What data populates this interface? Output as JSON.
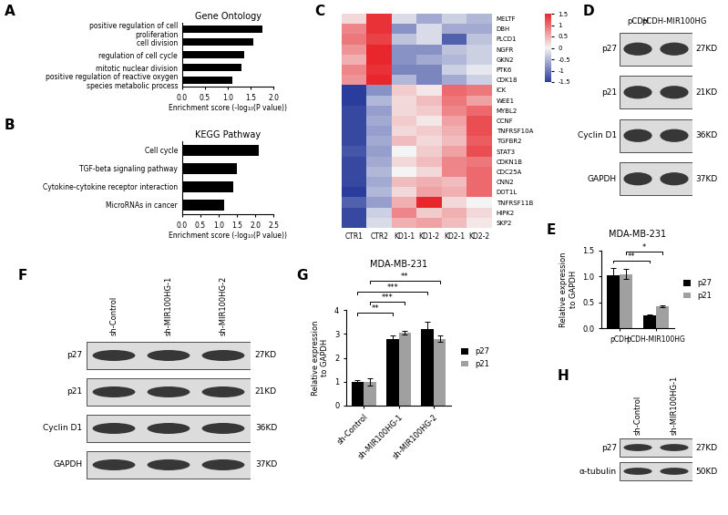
{
  "chart_data": [
    {
      "panel": "A",
      "type": "bar",
      "orientation": "horizontal",
      "title": "Gene Ontology",
      "categories": [
        "positive regulation of cell proliferation",
        "cell division",
        "regulation of cell cycle",
        "mitotic nuclear division",
        "positive regulation of reactive oxygen species metabolic process"
      ],
      "values": [
        1.75,
        1.55,
        1.35,
        1.3,
        1.1
      ],
      "color": "#000000",
      "xlabel": "Enrichment score (-log₁₀(P value))",
      "xlim": [
        0,
        2
      ],
      "xticks": [
        {
          "value": 0,
          "label": "0.0"
        },
        0.5,
        {
          "value": 1,
          "label": "1.0"
        },
        1.5,
        {
          "value": 2,
          "label": "2.0"
        }
      ]
    },
    {
      "panel": "B",
      "type": "bar",
      "orientation": "horizontal",
      "title": "KEGG Pathway",
      "categories": [
        "Cell cycle",
        "TGF-beta signaling pathway",
        "Cytokine-cytokine receptor interaction",
        "MicroRNAs in cancer"
      ],
      "values": [
        2.1,
        1.5,
        1.4,
        1.15
      ],
      "color": "#000000",
      "xlabel": "Enrichment score (-log₁₀(P value))",
      "xlim": [
        0,
        2.5
      ],
      "xticks": [
        {
          "value": 0,
          "label": "0.0"
        },
        0.5,
        {
          "value": 1,
          "label": "1.0"
        },
        1.5,
        {
          "value": 2,
          "label": "2.0"
        },
        2.5
      ]
    },
    {
      "panel": "C",
      "type": "heatmap",
      "columns": [
        "CTR1",
        "CTR2",
        "KD1-1",
        "KD1-2",
        "KD2-1",
        "KD2-2"
      ],
      "rows": [
        "MELTF",
        "DBH",
        "PLCD1",
        "NGFR",
        "GKN2",
        "PTK6",
        "CDK18",
        "ICK",
        "WEE1",
        "MYBL2",
        "CCNF",
        "TNFRSF10A",
        "TGFBR2",
        "STAT3",
        "CDKN1B",
        "CDC25A",
        "CNN2",
        "DOT1L",
        "TNFRSF11B",
        "HIPK2",
        "SKP2"
      ],
      "cells": [
        [
          0.2,
          1.4,
          -0.2,
          -0.6,
          -0.3,
          -0.5
        ],
        [
          0.8,
          1.4,
          -0.8,
          -0.2,
          -0.6,
          -0.6
        ],
        [
          0.9,
          1.3,
          -0.4,
          -0.2,
          -1.2,
          -0.4
        ],
        [
          0.7,
          1.5,
          -0.8,
          -0.8,
          -0.4,
          -0.3
        ],
        [
          0.5,
          1.5,
          -0.8,
          -0.6,
          -0.5,
          -0.3
        ],
        [
          0.8,
          1.4,
          -0.9,
          -0.9,
          -0.3,
          -0.1
        ],
        [
          0.7,
          1.5,
          -0.5,
          -0.9,
          -0.6,
          -0.3
        ],
        [
          -1.5,
          -0.8,
          0.3,
          0.1,
          1.0,
          0.9
        ],
        [
          -1.5,
          -0.5,
          0.2,
          0.4,
          0.9,
          0.6
        ],
        [
          -1.4,
          -0.7,
          0.2,
          0.3,
          0.8,
          1.0
        ],
        [
          -1.4,
          -0.6,
          0.3,
          0.1,
          0.6,
          1.2
        ],
        [
          -1.4,
          -0.7,
          0.2,
          0.3,
          0.5,
          1.2
        ],
        [
          -1.4,
          -0.6,
          0.4,
          0.2,
          0.4,
          1.1
        ],
        [
          -1.3,
          -0.7,
          0.0,
          0.3,
          0.6,
          1.2
        ],
        [
          -1.4,
          -0.6,
          0.2,
          0.4,
          0.8,
          0.9
        ],
        [
          -1.4,
          -0.5,
          0.0,
          0.2,
          0.8,
          1.0
        ],
        [
          -1.4,
          -0.6,
          0.4,
          0.5,
          0.4,
          1.0
        ],
        [
          -1.5,
          -0.5,
          0.2,
          0.6,
          0.5,
          1.0
        ],
        [
          -1.2,
          -0.7,
          0.5,
          1.5,
          0.2,
          0.0
        ],
        [
          -1.4,
          -0.3,
          0.8,
          0.3,
          0.5,
          0.2
        ],
        [
          -1.4,
          -0.2,
          0.5,
          0.6,
          0.4,
          0.1
        ]
      ],
      "colorbar_range": [
        -1.5,
        1.5
      ],
      "colorbar_ticks": [
        1.5,
        1,
        0.5,
        0,
        -0.5,
        -1,
        -1.5
      ]
    },
    {
      "panel": "E",
      "type": "bar",
      "title": "MDA-MB-231",
      "ylabel": "Relative expression\nto GAPDH",
      "categories": [
        "pCDH",
        "pCDH-MIR100HG"
      ],
      "series": [
        {
          "name": "p27",
          "color": "#000000",
          "values": [
            1.03,
            0.25
          ],
          "errors": [
            0.13,
            0.02
          ]
        },
        {
          "name": "p21",
          "color": "#a0a0a0",
          "values": [
            1.05,
            0.43
          ],
          "errors": [
            0.1,
            0.02
          ]
        }
      ],
      "ylim": [
        0,
        1.5
      ],
      "yticks": [
        {
          "value": 0,
          "label": "0.0"
        },
        0.5,
        {
          "value": 1,
          "label": "1.0"
        },
        1.5
      ],
      "legend": "right",
      "significance": [
        {
          "text": "**",
          "series": "p27",
          "between": [
            "pCDH",
            "pCDH-MIR100HG"
          ]
        },
        {
          "text": "*",
          "series": "p21",
          "between": [
            "pCDH",
            "pCDH-MIR100HG"
          ]
        }
      ]
    },
    {
      "panel": "G",
      "type": "bar",
      "title": "MDA-MB-231",
      "ylabel": "Relative expression\nto GAPDH",
      "categories": [
        "sh-Control",
        "sh-MIR100HG-1",
        "sh-MIR100HG-2"
      ],
      "series": [
        {
          "name": "p27",
          "color": "#000000",
          "values": [
            1.0,
            2.8,
            3.2
          ],
          "errors": [
            0.08,
            0.15,
            0.3
          ]
        },
        {
          "name": "p21",
          "color": "#a0a0a0",
          "values": [
            1.0,
            3.05,
            2.8
          ],
          "errors": [
            0.15,
            0.08,
            0.15
          ]
        }
      ],
      "ylim": [
        0,
        4
      ],
      "yticks": [
        0,
        1,
        2,
        3,
        4
      ],
      "legend": "right",
      "significance": [
        {
          "text": "**",
          "series": "p27",
          "between": [
            "sh-Control",
            "sh-MIR100HG-1"
          ]
        },
        {
          "text": "***",
          "series": "p21",
          "between": [
            "sh-Control",
            "sh-MIR100HG-1"
          ]
        },
        {
          "text": "***",
          "series": "p27",
          "between": [
            "sh-Control",
            "sh-MIR100HG-2"
          ]
        },
        {
          "text": "**",
          "series": "p21",
          "between": [
            "sh-Control",
            "sh-MIR100HG-2"
          ]
        }
      ]
    }
  ],
  "blots": [
    {
      "panel": "D",
      "lanes": [
        "pCDH",
        "pCDH-MIR100HG"
      ],
      "bands": [
        {
          "protein": "p27",
          "size": "27KD"
        },
        {
          "protein": "p21",
          "size": "21KD"
        },
        {
          "protein": "Cyclin D1",
          "size": "36KD"
        },
        {
          "protein": "GAPDH",
          "size": "37KD"
        }
      ]
    },
    {
      "panel": "F",
      "lanes": [
        "sh-Control",
        "sh-MIR100HG-1",
        "sh-MIR100HG-2"
      ],
      "bands": [
        {
          "protein": "p27",
          "size": "27KD"
        },
        {
          "protein": "p21",
          "size": "21KD"
        },
        {
          "protein": "Cyclin D1",
          "size": "36KD"
        },
        {
          "protein": "GAPDH",
          "size": "37KD"
        }
      ]
    },
    {
      "panel": "H",
      "lanes": [
        "sh-Control",
        "sh-MIR100HG-1"
      ],
      "bands": [
        {
          "protein": "p27",
          "size": "27KD"
        },
        {
          "protein": "α-tubulin",
          "size": "50KD"
        }
      ]
    }
  ]
}
